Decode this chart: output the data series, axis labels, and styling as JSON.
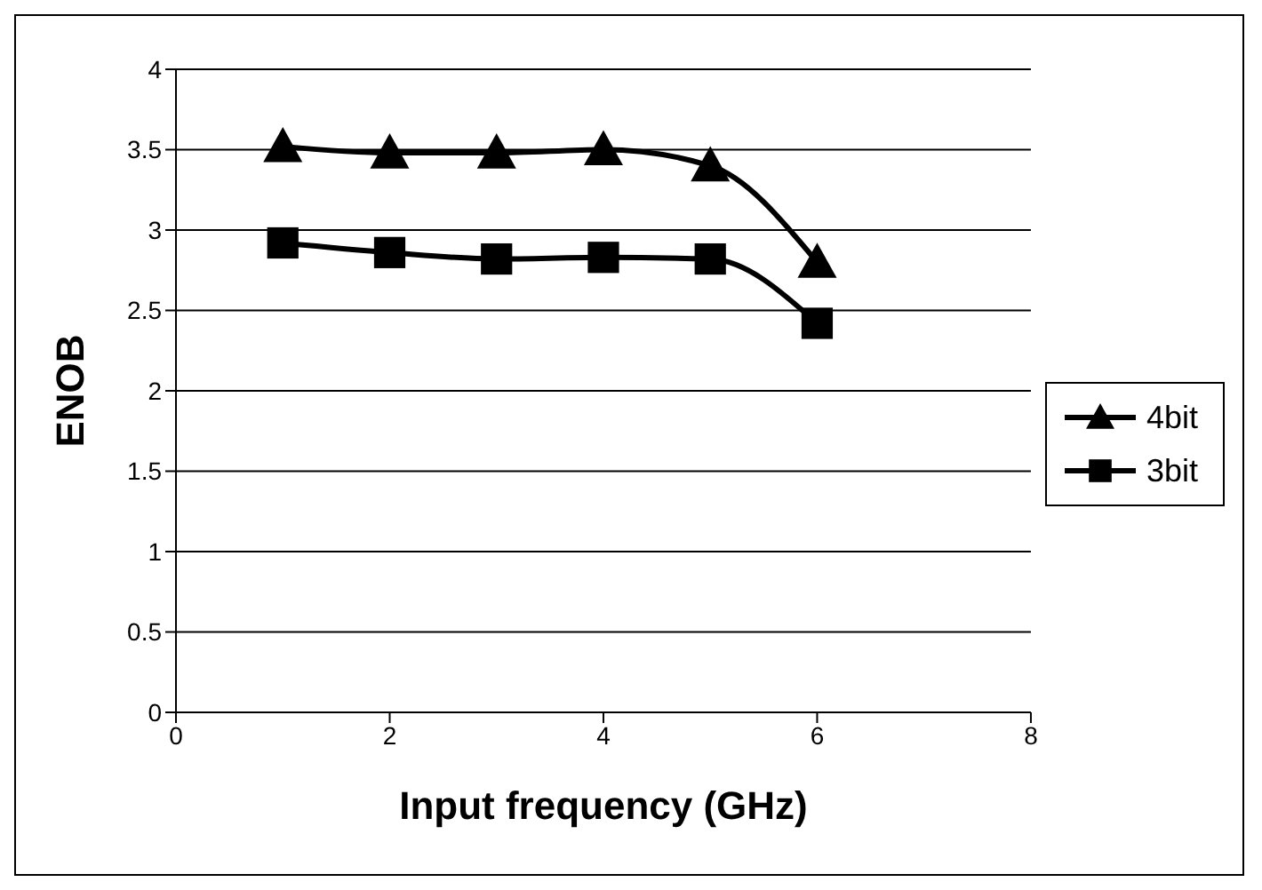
{
  "chart_data": {
    "type": "line",
    "xlabel": "Input frequency (GHz)",
    "ylabel": "ENOB",
    "x": [
      1,
      2,
      3,
      4,
      5,
      6
    ],
    "series": [
      {
        "name": "4bit",
        "color": "#000000",
        "marker": "triangle",
        "values": [
          3.52,
          3.48,
          3.48,
          3.5,
          3.4,
          2.8
        ]
      },
      {
        "name": "3bit",
        "color": "#000000",
        "marker": "square",
        "values": [
          2.92,
          2.86,
          2.82,
          2.83,
          2.82,
          2.42
        ]
      }
    ],
    "xlim": [
      0,
      8
    ],
    "xticks": [
      0,
      2,
      4,
      6,
      8
    ],
    "ylim": [
      0,
      4
    ],
    "yticks": [
      0,
      0.5,
      1,
      1.5,
      2,
      2.5,
      3,
      3.5,
      4
    ],
    "grid": "y",
    "legend": "right",
    "line_style": "solid"
  }
}
